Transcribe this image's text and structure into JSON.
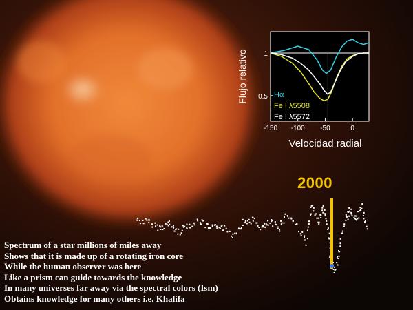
{
  "colors": {
    "star_core": "#f08a3a",
    "star_glow": "#c2461a",
    "background": "#0c0604",
    "h_alpha": "#33d6e8",
    "fe_5508": "#e6e63a",
    "fe_5572": "#ffffff",
    "year_marker": "#f5c400",
    "caption_text": "#ffffff"
  },
  "year_label": "2000",
  "caption_lines": [
    "Spectrum of a star millions of miles away",
    "Shows that it is made up of a rotating iron core",
    "While the human observer was here",
    "Like a prism can guide towards the knowledge",
    "In many universes far away via the spectral colors (Ism)",
    "Obtains knowledge for many others i.e. Khalifa"
  ],
  "chart_data": [
    {
      "type": "line",
      "xlabel": "Velocidad radial",
      "ylabel": "Flujo relativo",
      "xlim": [
        -150,
        30
      ],
      "ylim": [
        0.2,
        1.25
      ],
      "xticks": [
        -150,
        -100,
        -50,
        0
      ],
      "yticks": [
        0.5,
        1
      ],
      "reference_lines": [
        {
          "axis": "y",
          "value": 1
        },
        {
          "axis": "x",
          "value": -45
        }
      ],
      "legend": "bottom-left",
      "series": [
        {
          "name": "Hα",
          "x": [
            -150,
            -125,
            -100,
            -80,
            -65,
            -55,
            -48,
            -40,
            -30,
            -20,
            -10,
            0,
            10,
            20,
            30
          ],
          "y": [
            1.0,
            1.03,
            1.08,
            1.04,
            0.92,
            0.8,
            0.76,
            0.8,
            0.95,
            1.07,
            1.14,
            1.16,
            1.12,
            1.1,
            1.12
          ]
        },
        {
          "name": "Fe I λ5508",
          "x": [
            -150,
            -130,
            -110,
            -95,
            -80,
            -70,
            -60,
            -52,
            -45,
            -38,
            -30,
            -20,
            -10,
            0,
            10,
            20,
            30
          ],
          "y": [
            1.0,
            0.96,
            0.88,
            0.78,
            0.64,
            0.54,
            0.47,
            0.44,
            0.46,
            0.55,
            0.7,
            0.84,
            0.93,
            0.97,
            0.99,
            1.0,
            1.0
          ]
        },
        {
          "name": "Fe I λ5572",
          "x": [
            -150,
            -130,
            -110,
            -95,
            -80,
            -70,
            -60,
            -52,
            -46,
            -40,
            -32,
            -22,
            -12,
            0,
            10,
            20,
            30
          ],
          "y": [
            1.0,
            0.98,
            0.94,
            0.88,
            0.8,
            0.72,
            0.64,
            0.56,
            0.52,
            0.54,
            0.66,
            0.8,
            0.9,
            0.96,
            0.99,
            1.0,
            1.0
          ]
        }
      ]
    }
  ]
}
